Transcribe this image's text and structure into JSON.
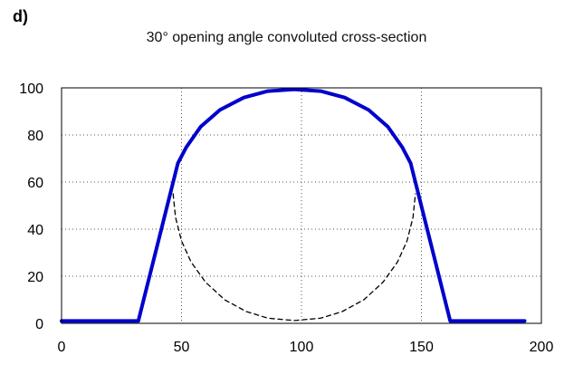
{
  "panel_label": "d)",
  "chart_data": {
    "type": "line",
    "title": "30° opening angle convoluted cross-section",
    "xlabel": "",
    "ylabel": "",
    "xlim": [
      0,
      200
    ],
    "ylim": [
      0,
      100
    ],
    "x_ticks": [
      0,
      50,
      100,
      150,
      200
    ],
    "y_ticks": [
      0,
      20,
      40,
      60,
      80,
      100
    ],
    "grid": true,
    "series": [
      {
        "style": "solid",
        "color": "#0000cc",
        "points": [
          [
            0,
            1
          ],
          [
            32,
            1
          ],
          [
            48.5,
            68
          ],
          [
            52,
            74.8
          ],
          [
            58,
            83.5
          ],
          [
            66,
            90.6
          ],
          [
            76,
            95.9
          ],
          [
            86,
            98.6
          ],
          [
            97,
            99.4
          ],
          [
            108,
            98.6
          ],
          [
            118,
            95.9
          ],
          [
            128,
            90.6
          ],
          [
            136,
            83.5
          ],
          [
            142,
            74.8
          ],
          [
            145.5,
            68
          ],
          [
            162,
            1
          ],
          [
            193,
            1
          ]
        ]
      },
      {
        "style": "dashed",
        "color": "#000000",
        "points": [
          [
            46.5,
            55
          ],
          [
            47.5,
            45
          ],
          [
            50,
            35
          ],
          [
            54,
            26
          ],
          [
            60,
            17.5
          ],
          [
            68,
            10
          ],
          [
            77,
            5
          ],
          [
            86,
            2.2
          ],
          [
            97,
            1.2
          ],
          [
            108,
            2.2
          ],
          [
            117,
            5
          ],
          [
            126,
            10
          ],
          [
            134,
            17.5
          ],
          [
            140,
            26
          ],
          [
            144,
            35
          ],
          [
            146.5,
            45
          ],
          [
            147.5,
            55
          ]
        ]
      }
    ]
  }
}
